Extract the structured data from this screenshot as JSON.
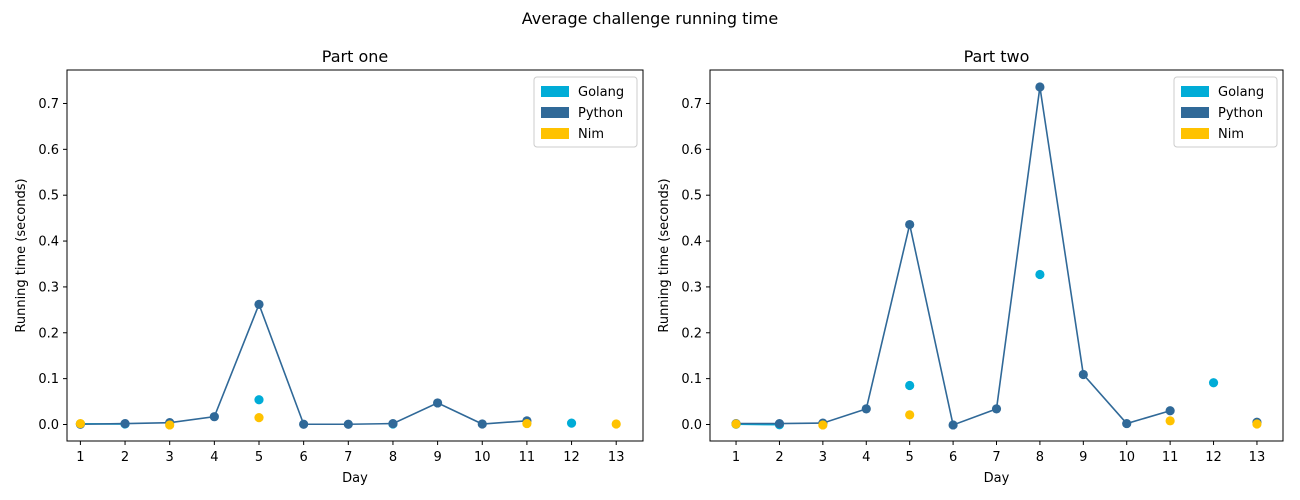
{
  "figure": {
    "title": "Average challenge running time"
  },
  "chart_data": [
    {
      "type": "line",
      "title": "Part one",
      "xlabel": "Day",
      "ylabel": "Running time (seconds)",
      "x_ticks": [
        1,
        2,
        3,
        4,
        5,
        6,
        7,
        8,
        9,
        10,
        11,
        12,
        13
      ],
      "y_ticks": [
        "0.0",
        "0.1",
        "0.2",
        "0.3",
        "0.4",
        "0.5",
        "0.6",
        "0.7"
      ],
      "xlim": [
        0.7,
        13.6
      ],
      "ylim": [
        -0.036,
        0.773
      ],
      "grid": false,
      "legend_position": "top-right",
      "series": [
        {
          "name": "Golang",
          "color": "#00acd7",
          "x": [
            1,
            2,
            5,
            8,
            12
          ],
          "y": [
            0.0015,
            0.001,
            0.054,
            0.001,
            0.003
          ],
          "line_x": [
            1,
            2
          ],
          "line_y": [
            0.0015,
            0.001
          ]
        },
        {
          "name": "Python",
          "color": "#306998",
          "x": [
            1,
            2,
            3,
            4,
            5,
            6,
            7,
            8,
            9,
            10,
            11
          ],
          "y": [
            0.0005,
            0.002,
            0.004,
            0.017,
            0.262,
            0.0005,
            0.0005,
            0.002,
            0.047,
            0.001,
            0.008
          ],
          "line_x": [
            1,
            2,
            3,
            4,
            5,
            6,
            7,
            8,
            9,
            10,
            11
          ],
          "line_y": [
            0.0005,
            0.002,
            0.004,
            0.017,
            0.262,
            0.0005,
            0.0005,
            0.002,
            0.047,
            0.001,
            0.008
          ]
        },
        {
          "name": "Nim",
          "color": "#ffc200",
          "x": [
            1,
            3,
            5,
            11,
            13
          ],
          "y": [
            0.002,
            -0.001,
            0.015,
            0.002,
            0.001
          ],
          "line_x": [],
          "line_y": []
        }
      ]
    },
    {
      "type": "line",
      "title": "Part two",
      "xlabel": "Day",
      "ylabel": "Running time (seconds)",
      "x_ticks": [
        1,
        2,
        3,
        4,
        5,
        6,
        7,
        8,
        9,
        10,
        11,
        12,
        13
      ],
      "y_ticks": [
        "0.0",
        "0.1",
        "0.2",
        "0.3",
        "0.4",
        "0.5",
        "0.6",
        "0.7"
      ],
      "xlim": [
        0.4,
        13.6
      ],
      "ylim": [
        -0.036,
        0.773
      ],
      "grid": false,
      "legend_position": "top-right",
      "series": [
        {
          "name": "Golang",
          "color": "#00acd7",
          "x": [
            1,
            2,
            5,
            8,
            12
          ],
          "y": [
            0.0005,
            -0.0005,
            0.085,
            0.327,
            0.091
          ],
          "line_x": [
            1,
            2
          ],
          "line_y": [
            0.0005,
            -0.0005
          ]
        },
        {
          "name": "Python",
          "color": "#306998",
          "x": [
            1,
            2,
            3,
            4,
            5,
            6,
            7,
            8,
            9,
            10,
            11,
            13
          ],
          "y": [
            0.002,
            0.002,
            0.003,
            0.034,
            0.436,
            -0.001,
            0.034,
            0.736,
            0.109,
            0.002,
            0.03,
            0.005
          ],
          "line_x": [
            1,
            2,
            3,
            4,
            5,
            6,
            7,
            8,
            9,
            10,
            11
          ],
          "line_y": [
            0.002,
            0.002,
            0.003,
            0.034,
            0.436,
            -0.001,
            0.034,
            0.736,
            0.109,
            0.002,
            0.03
          ]
        },
        {
          "name": "Nim",
          "color": "#ffc200",
          "x": [
            1,
            3,
            5,
            11,
            13
          ],
          "y": [
            0.001,
            -0.001,
            0.021,
            0.008,
            0.001
          ],
          "line_x": [],
          "line_y": []
        }
      ]
    }
  ]
}
